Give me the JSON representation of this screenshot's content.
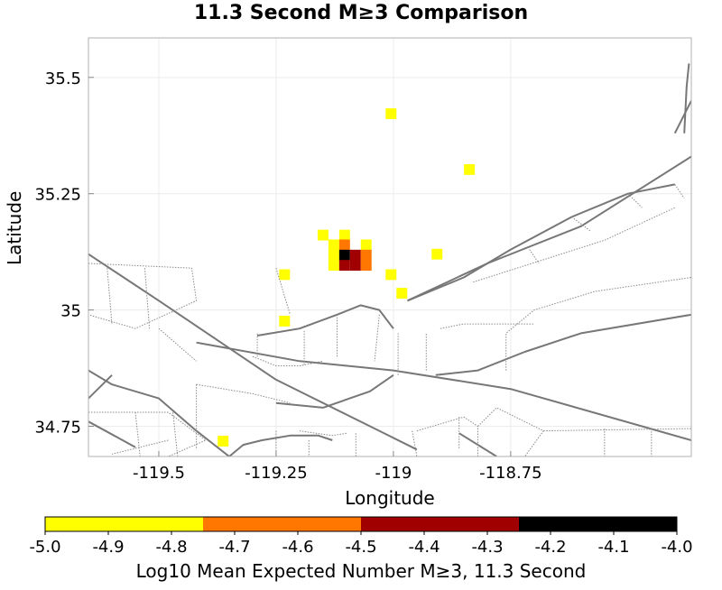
{
  "chart_data": {
    "type": "heatmap",
    "title": "11.3 Second M≥3 Comparison",
    "xlabel": "Longitude",
    "ylabel": "Latitude",
    "xlim": [
      -119.65,
      -118.365
    ],
    "ylim": [
      34.685,
      35.585
    ],
    "x_ticks": [
      -119.5,
      -119.25,
      -119,
      -118.75
    ],
    "x_tick_labels": [
      "-119.5",
      "-119.25",
      "-119",
      "-118.75"
    ],
    "y_ticks": [
      34.75,
      35,
      35.25,
      35.5
    ],
    "y_tick_labels": [
      "34.75",
      "35",
      "35.25",
      "35.5"
    ],
    "grid": true,
    "cell_size_deg": 0.023,
    "cells": [
      {
        "lon": -119.005,
        "lat": 35.422,
        "value": -4.9
      },
      {
        "lon": -118.838,
        "lat": 35.302,
        "value": -4.9
      },
      {
        "lon": -119.15,
        "lat": 35.161,
        "value": -4.9
      },
      {
        "lon": -119.104,
        "lat": 35.161,
        "value": -4.9
      },
      {
        "lon": -119.058,
        "lat": 35.14,
        "value": -4.9
      },
      {
        "lon": -119.127,
        "lat": 35.14,
        "value": -4.9
      },
      {
        "lon": -119.127,
        "lat": 35.118,
        "value": -4.9
      },
      {
        "lon": -119.127,
        "lat": 35.096,
        "value": -4.9
      },
      {
        "lon": -119.104,
        "lat": 35.14,
        "value": -4.65
      },
      {
        "lon": -119.104,
        "lat": 35.118,
        "value": -4.0
      },
      {
        "lon": -119.104,
        "lat": 35.096,
        "value": -4.4
      },
      {
        "lon": -119.081,
        "lat": 35.118,
        "value": -4.4
      },
      {
        "lon": -119.081,
        "lat": 35.096,
        "value": -4.4
      },
      {
        "lon": -119.058,
        "lat": 35.118,
        "value": -4.65
      },
      {
        "lon": -119.058,
        "lat": 35.096,
        "value": -4.65
      },
      {
        "lon": -118.907,
        "lat": 35.12,
        "value": -4.9
      },
      {
        "lon": -119.005,
        "lat": 35.076,
        "value": -4.9
      },
      {
        "lon": -118.982,
        "lat": 35.036,
        "value": -4.9
      },
      {
        "lon": -119.232,
        "lat": 35.076,
        "value": -4.9
      },
      {
        "lon": -119.232,
        "lat": 34.976,
        "value": -4.9
      },
      {
        "lon": -119.363,
        "lat": 34.718,
        "value": -4.9
      }
    ],
    "faults": [
      {
        "style": "solid",
        "points": [
          [
            -119.65,
            35.12
          ],
          [
            -119.5,
            35.02
          ],
          [
            -119.25,
            34.85
          ],
          [
            -119.03,
            34.74
          ],
          [
            -118.95,
            34.7
          ]
        ]
      },
      {
        "style": "solid",
        "points": [
          [
            -119.65,
            34.76
          ],
          [
            -119.55,
            34.705
          ]
        ]
      },
      {
        "style": "solid",
        "points": [
          [
            -119.65,
            34.87
          ],
          [
            -119.6,
            34.84
          ],
          [
            -119.5,
            34.81
          ],
          [
            -119.42,
            34.74
          ],
          [
            -119.35,
            34.685
          ]
        ]
      },
      {
        "style": "solid",
        "points": [
          [
            -119.65,
            34.81
          ],
          [
            -119.6,
            34.86
          ]
        ]
      },
      {
        "style": "solid",
        "points": [
          [
            -119.42,
            34.93
          ],
          [
            -119.2,
            34.89
          ],
          [
            -119.0,
            34.87
          ],
          [
            -118.75,
            34.83
          ],
          [
            -118.365,
            34.72
          ]
        ]
      },
      {
        "style": "solid",
        "points": [
          [
            -119.29,
            34.945
          ],
          [
            -119.2,
            34.96
          ],
          [
            -119.12,
            34.99
          ],
          [
            -119.07,
            35.01
          ],
          [
            -119.03,
            35.0
          ],
          [
            -119.0,
            34.96
          ]
        ]
      },
      {
        "style": "solid",
        "points": [
          [
            -119.25,
            34.8
          ],
          [
            -119.15,
            34.79
          ],
          [
            -119.05,
            34.825
          ],
          [
            -119.0,
            34.86
          ]
        ]
      },
      {
        "style": "solid",
        "points": [
          [
            -118.97,
            35.02
          ],
          [
            -118.8,
            35.1
          ],
          [
            -118.6,
            35.18
          ],
          [
            -118.365,
            35.33
          ]
        ]
      },
      {
        "style": "solid",
        "points": [
          [
            -118.97,
            35.02
          ],
          [
            -118.85,
            35.07
          ],
          [
            -118.75,
            35.13
          ],
          [
            -118.62,
            35.2
          ],
          [
            -118.5,
            35.25
          ],
          [
            -118.4,
            35.27
          ]
        ]
      },
      {
        "style": "solid",
        "points": [
          [
            -118.91,
            34.86
          ],
          [
            -118.82,
            34.87
          ],
          [
            -118.72,
            34.91
          ],
          [
            -118.6,
            34.95
          ],
          [
            -118.365,
            34.99
          ]
        ]
      },
      {
        "style": "solid",
        "points": [
          [
            -118.38,
            35.38
          ],
          [
            -118.375,
            35.48
          ],
          [
            -118.37,
            35.53
          ]
        ]
      },
      {
        "style": "solid",
        "points": [
          [
            -118.365,
            35.45
          ],
          [
            -118.4,
            35.38
          ]
        ]
      },
      {
        "style": "solid",
        "points": [
          [
            -119.35,
            34.685
          ],
          [
            -119.32,
            34.71
          ],
          [
            -119.28,
            34.72
          ],
          [
            -119.22,
            34.73
          ],
          [
            -119.16,
            34.73
          ],
          [
            -119.13,
            34.72
          ]
        ]
      },
      {
        "style": "solid",
        "points": [
          [
            -118.86,
            34.735
          ],
          [
            -118.78,
            34.685
          ]
        ]
      },
      {
        "style": "dotted",
        "points": [
          [
            -119.65,
            35.1
          ],
          [
            -119.43,
            35.09
          ],
          [
            -119.42,
            35.02
          ],
          [
            -119.55,
            34.96
          ],
          [
            -119.65,
            34.99
          ]
        ]
      },
      {
        "style": "dotted",
        "points": [
          [
            -119.61,
            35.09
          ],
          [
            -119.6,
            34.97
          ]
        ]
      },
      {
        "style": "dotted",
        "points": [
          [
            -119.53,
            35.09
          ],
          [
            -119.52,
            34.96
          ]
        ]
      },
      {
        "style": "dotted",
        "points": [
          [
            -119.5,
            34.96
          ],
          [
            -119.42,
            34.89
          ]
        ]
      },
      {
        "style": "dotted",
        "points": [
          [
            -119.25,
            35.09
          ],
          [
            -119.22,
            34.99
          ]
        ]
      },
      {
        "style": "dotted",
        "points": [
          [
            -119.29,
            34.9
          ],
          [
            -119.29,
            34.95
          ]
        ]
      },
      {
        "style": "dotted",
        "points": [
          [
            -119.19,
            34.955
          ],
          [
            -119.19,
            34.88
          ]
        ]
      },
      {
        "style": "dotted",
        "points": [
          [
            -119.12,
            34.99
          ],
          [
            -119.12,
            34.9
          ]
        ]
      },
      {
        "style": "dotted",
        "points": [
          [
            -119.03,
            34.99
          ],
          [
            -119.04,
            34.89
          ]
        ]
      },
      {
        "style": "dotted",
        "points": [
          [
            -118.99,
            34.86
          ],
          [
            -118.99,
            34.95
          ]
        ]
      },
      {
        "style": "dotted",
        "points": [
          [
            -118.93,
            34.87
          ],
          [
            -118.93,
            34.95
          ]
        ]
      },
      {
        "style": "dotted",
        "points": [
          [
            -119.3,
            34.9
          ],
          [
            -119.25,
            34.88
          ],
          [
            -119.2,
            34.88
          ],
          [
            -119.15,
            34.89
          ]
        ]
      },
      {
        "style": "dotted",
        "points": [
          [
            -119.65,
            34.78
          ],
          [
            -119.48,
            34.78
          ],
          [
            -119.4,
            34.72
          ],
          [
            -119.48,
            34.685
          ]
        ]
      },
      {
        "style": "dotted",
        "points": [
          [
            -119.55,
            34.78
          ],
          [
            -119.54,
            34.685
          ]
        ]
      },
      {
        "style": "dotted",
        "points": [
          [
            -119.47,
            34.78
          ],
          [
            -119.46,
            34.685
          ]
        ]
      },
      {
        "style": "dotted",
        "points": [
          [
            -119.48,
            34.72
          ],
          [
            -119.6,
            34.69
          ]
        ]
      },
      {
        "style": "dotted",
        "points": [
          [
            -119.42,
            34.84
          ],
          [
            -119.3,
            34.82
          ],
          [
            -119.22,
            34.8
          ]
        ]
      },
      {
        "style": "dotted",
        "points": [
          [
            -119.42,
            34.84
          ],
          [
            -119.42,
            34.7
          ]
        ]
      },
      {
        "style": "dotted",
        "points": [
          [
            -119.2,
            34.74
          ],
          [
            -119.13,
            34.73
          ],
          [
            -119.1,
            34.735
          ]
        ]
      },
      {
        "style": "dotted",
        "points": [
          [
            -119.25,
            34.74
          ],
          [
            -119.25,
            34.685
          ]
        ]
      },
      {
        "style": "dotted",
        "points": [
          [
            -119.18,
            34.72
          ],
          [
            -119.18,
            34.685
          ]
        ]
      },
      {
        "style": "dotted",
        "points": [
          [
            -119.08,
            34.735
          ],
          [
            -119.08,
            34.685
          ]
        ]
      },
      {
        "style": "dotted",
        "points": [
          [
            -118.95,
            34.74
          ],
          [
            -118.85,
            34.77
          ],
          [
            -118.82,
            34.75
          ],
          [
            -118.82,
            34.685
          ]
        ]
      },
      {
        "style": "dotted",
        "points": [
          [
            -118.96,
            34.74
          ],
          [
            -118.95,
            34.685
          ]
        ]
      },
      {
        "style": "dotted",
        "points": [
          [
            -118.86,
            34.77
          ],
          [
            -118.86,
            34.7
          ]
        ]
      },
      {
        "style": "dotted",
        "points": [
          [
            -118.82,
            34.75
          ],
          [
            -118.78,
            34.79
          ],
          [
            -118.68,
            34.74
          ],
          [
            -118.72,
            34.685
          ]
        ]
      },
      {
        "style": "dotted",
        "points": [
          [
            -118.68,
            34.74
          ],
          [
            -118.365,
            34.745
          ]
        ]
      },
      {
        "style": "dotted",
        "points": [
          [
            -118.55,
            34.745
          ],
          [
            -118.55,
            34.685
          ]
        ]
      },
      {
        "style": "dotted",
        "points": [
          [
            -118.45,
            34.745
          ],
          [
            -118.45,
            34.685
          ]
        ]
      },
      {
        "style": "dotted",
        "points": [
          [
            -118.76,
            34.87
          ],
          [
            -118.76,
            34.95
          ],
          [
            -118.7,
            35.0
          ],
          [
            -118.57,
            35.04
          ],
          [
            -118.365,
            35.07
          ]
        ]
      },
      {
        "style": "dotted",
        "points": [
          [
            -118.9,
            34.96
          ],
          [
            -118.85,
            34.97
          ],
          [
            -118.7,
            34.97
          ]
        ]
      },
      {
        "style": "dotted",
        "points": [
          [
            -118.83,
            35.06
          ],
          [
            -118.55,
            35.15
          ],
          [
            -118.4,
            35.22
          ]
        ]
      },
      {
        "style": "dotted",
        "points": [
          [
            -118.71,
            35.13
          ],
          [
            -118.69,
            35.1
          ]
        ]
      },
      {
        "style": "dotted",
        "points": [
          [
            -118.62,
            35.2
          ],
          [
            -118.58,
            35.17
          ]
        ]
      },
      {
        "style": "dotted",
        "points": [
          [
            -118.5,
            35.25
          ],
          [
            -118.47,
            35.22
          ]
        ]
      },
      {
        "style": "dotted",
        "points": [
          [
            -118.4,
            35.27
          ],
          [
            -118.38,
            35.24
          ]
        ]
      }
    ],
    "colorbar": {
      "title": "Log10 Mean Expected Number M≥3, 11.3 Second",
      "range": [
        -5.0,
        -4.0
      ],
      "segments": [
        {
          "from": -5.0,
          "to": -4.75,
          "color": "#ffff00"
        },
        {
          "from": -4.75,
          "to": -4.5,
          "color": "#ff7700"
        },
        {
          "from": -4.5,
          "to": -4.25,
          "color": "#a00000"
        },
        {
          "from": -4.25,
          "to": -4.0,
          "color": "#000000"
        }
      ],
      "tick_labels": [
        "-5.0",
        "-4.9",
        "-4.8",
        "-4.7",
        "-4.6",
        "-4.5",
        "-4.4",
        "-4.3",
        "-4.2",
        "-4.1",
        "-4.0"
      ]
    }
  }
}
